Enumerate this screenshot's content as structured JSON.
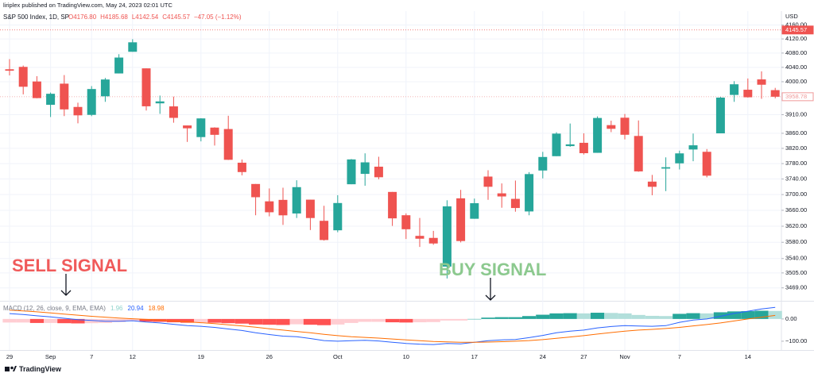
{
  "header": {
    "publisher": "liriplex published on TradingView.com, May 24, 2023 02:01 UTC",
    "currency": "USD",
    "footer": "TradingView"
  },
  "chart_data": [
    {
      "type": "candlestick",
      "legend": {
        "symbol": "S&P 500 Index, 1D, SP",
        "ohlc": [
          "O4176.80",
          "H4185.68",
          "L4142.54",
          "C4145.57",
          "−47.05 (−1.12%)"
        ]
      },
      "categories": [
        "29",
        null,
        null,
        "Sep",
        null,
        null,
        "7",
        null,
        null,
        "12",
        null,
        null,
        null,
        null,
        "19",
        null,
        null,
        null,
        null,
        "26",
        null,
        null,
        null,
        null,
        "Oct",
        null,
        null,
        null,
        null,
        "10",
        null,
        null,
        null,
        null,
        "17",
        null,
        null,
        null,
        null,
        "24",
        null,
        null,
        "27",
        null,
        null,
        "Nov",
        null,
        null,
        null,
        "7",
        null,
        null,
        null,
        null,
        "14",
        null,
        null
      ],
      "open": [
        4034.58,
        4041.25,
        4000.67,
        3936.73,
        3994.66,
        3930.89,
        3909.43,
        3959.94,
        4022.94,
        4083.67,
        4037.12,
        3940.73,
        3932.41,
        3880.95,
        3849.91,
        3875.23,
        3871.4,
        3782.36,
        3727.14,
        3682.72,
        3686.44,
        3651.94,
        3687.01,
        3633.48,
        3609.78,
        3726.46,
        3753.25,
        3771.97,
        3706.74,
        3647.51,
        3595.86,
        3590.83,
        3520.37,
        3690.41,
        3638.65,
        3746.26,
        3703.11,
        3689.05,
        3657.1,
        3762.01,
        3799.44,
        3825.97,
        3834.69,
        3808.26,
        3881.86,
        3901.79,
        3852.9,
        3733.25,
        3766.98,
        3780.71,
        3817.02,
        3810.94,
        3859.89,
        3963.72,
        3977.97,
        4006.41,
        3976.82
      ],
      "high": [
        4062.99,
        4044.98,
        4015.37,
        3970.23,
        4018.43,
        3942.55,
        3987.89,
        4010.5,
        4076.81,
        4119.28,
        4037.12,
        3961.94,
        3959.14,
        3880.95,
        3900.45,
        3876.01,
        3907.07,
        3790.68,
        3727.14,
        3715.67,
        3717.53,
        3736.74,
        3687.01,
        3671.44,
        3698.35,
        3791.92,
        3806.91,
        3797.93,
        3706.74,
        3652.17,
        3640.66,
        3608.34,
        3685.41,
        3712.0,
        3689.73,
        3762.79,
        3728.58,
        3736.0,
        3757.89,
        3810.74,
        3862.85,
        3886.15,
        3859.95,
        3905.42,
        3893.73,
        3911.79,
        3894.44,
        3750.59,
        3796.34,
        3813.95,
        3859.4,
        3818.2,
        3958.33,
        4001.48,
        4008.97,
        4028.84,
        3983.09
      ],
      "low": [
        4017.42,
        3965.21,
        3954.53,
        3903.65,
        3906.21,
        3886.75,
        3906.03,
        3944.81,
        4022.94,
        4083.67,
        3921.27,
        3912.17,
        3888.28,
        3837.08,
        3838.5,
        3827.54,
        3789.49,
        3749.45,
        3647.47,
        3644.76,
        3623.29,
        3640.61,
        3610.4,
        3584.13,
        3604.93,
        3726.46,
        3722.66,
        3739.22,
        3620.73,
        3588.1,
        3568.45,
        3573.86,
        3491.58,
        3579.68,
        3638.65,
        3686.53,
        3666.51,
        3656.44,
        3647.42,
        3741.65,
        3799.44,
        3824.07,
        3803.79,
        3808.26,
        3863.18,
        3843.8,
        3758.68,
        3698.15,
        3708.84,
        3764.7,
        3786.28,
        3744.22,
        3859.89,
        3944.82,
        3956.4,
        3953.17,
        3954.34
      ],
      "close": [
        4030.61,
        3986.16,
        3955.0,
        3966.85,
        3924.26,
        3908.19,
        3979.87,
        4006.18,
        4067.36,
        4110.41,
        3932.69,
        3946.01,
        3901.35,
        3873.33,
        3899.89,
        3855.93,
        3789.93,
        3757.99,
        3693.23,
        3655.04,
        3647.29,
        3719.04,
        3640.47,
        3585.62,
        3678.43,
        3790.93,
        3783.28,
        3744.52,
        3639.66,
        3612.39,
        3588.84,
        3577.03,
        3669.91,
        3583.07,
        3677.95,
        3719.98,
        3695.16,
        3665.78,
        3752.75,
        3797.34,
        3859.11,
        3830.6,
        3807.3,
        3901.06,
        3871.98,
        3856.1,
        3759.69,
        3719.89,
        3770.55,
        3806.8,
        3828.11,
        3748.57,
        3956.37,
        3992.93,
        3957.25,
        3991.73,
        3958.78
      ],
      "up_color": "#26a69a",
      "down_color": "#ef5350",
      "log_scale": true,
      "grid": true,
      "ylim": [
        3440,
        4200
      ],
      "yticks": [
        {
          "value": 3469,
          "label": "3469.00"
        },
        {
          "value": 3505,
          "label": "3505.00"
        },
        {
          "value": 3540,
          "label": "3540.00"
        },
        {
          "value": 3580,
          "label": "3580.00"
        },
        {
          "value": 3620,
          "label": "3620.00"
        },
        {
          "value": 3660,
          "label": "3660.00"
        },
        {
          "value": 3700,
          "label": "3700.00"
        },
        {
          "value": 3740,
          "label": "3740.00"
        },
        {
          "value": 3780,
          "label": "3780.00"
        },
        {
          "value": 3820,
          "label": "3820.00"
        },
        {
          "value": 3860,
          "label": "3860.00"
        },
        {
          "value": 3910,
          "label": "3910.00"
        },
        {
          "value": 4000,
          "label": "4000.00"
        },
        {
          "value": 4040,
          "label": "4040.00"
        },
        {
          "value": 4080,
          "label": "4080.00"
        },
        {
          "value": 4120,
          "label": "4120.00"
        },
        {
          "value": 4160,
          "label": "4160.00"
        }
      ],
      "price_lines": [
        {
          "value": 4145.57,
          "label": "4145.57",
          "color": "#ef5350"
        },
        {
          "value": 3958.78,
          "label": "3958.78",
          "color": "#ef9a9a"
        }
      ],
      "annotations": [
        {
          "text": "SELL SIGNAL",
          "color": "#f05a5a"
        },
        {
          "text": "BUY SIGNAL",
          "color": "#8cc98e"
        }
      ]
    },
    {
      "type": "macd",
      "legend": {
        "title": "MACD (12, 26, close, 9, EMA, EMA)",
        "values": [
          {
            "text": "1.96",
            "color": "#8fd3cc"
          },
          {
            "text": "20.94",
            "color": "#2962ff"
          },
          {
            "text": "18.98",
            "color": "#ff6d00"
          }
        ]
      },
      "histogram": [
        -16,
        -16,
        -18,
        -18,
        -19,
        -20,
        -19,
        -18,
        -14,
        -9,
        -12,
        -13,
        -15,
        -17,
        -16,
        -17,
        -19,
        -21,
        -25,
        -26,
        -27,
        -24,
        -26,
        -28,
        -25,
        -18,
        -13,
        -13,
        -15,
        -16,
        -15,
        -14,
        -7,
        -7,
        0,
        6,
        8,
        8,
        13,
        19,
        25,
        26,
        25,
        28,
        27,
        25,
        18,
        14,
        13,
        23,
        26,
        25,
        30,
        34,
        35,
        37,
        36
      ],
      "histogram_colors": [
        "#26a69a",
        "#b2dfdb",
        "#ffcdd2",
        "#ff5252"
      ],
      "series": [
        {
          "color": "#2962ff",
          "values": [
            24,
            20,
            14,
            9,
            3,
            -3,
            -7,
            -10,
            -10,
            -8,
            -14,
            -18,
            -24,
            -30,
            -33,
            -38,
            -45,
            -52,
            -62,
            -70,
            -77,
            -80,
            -88,
            -97,
            -100,
            -98,
            -96,
            -99,
            -105,
            -110,
            -113,
            -115,
            -110,
            -112,
            -105,
            -98,
            -94,
            -92,
            -84,
            -74,
            -62,
            -55,
            -50,
            -40,
            -34,
            -30,
            -32,
            -33,
            -30,
            -15,
            -5,
            0,
            12,
            25,
            35,
            45,
            52
          ]
        },
        {
          "color": "#ff6d00",
          "values": [
            40,
            36,
            32,
            27,
            22,
            17,
            12,
            8,
            4,
            1,
            -2,
            -5,
            -9,
            -13,
            -17,
            -21,
            -26,
            -31,
            -37,
            -44,
            -50,
            -56,
            -62,
            -69,
            -75,
            -80,
            -83,
            -86,
            -90,
            -94,
            -98,
            -101,
            -103,
            -105,
            -105,
            -104,
            -102,
            -100,
            -97,
            -93,
            -87,
            -81,
            -75,
            -68,
            -61,
            -55,
            -50,
            -47,
            -43,
            -38,
            -31,
            -25,
            -18,
            -9,
            0,
            8,
            16
          ]
        }
      ],
      "ylim": [
        -136,
        78
      ],
      "yticks": [
        {
          "value": 0,
          "label": "0.00"
        },
        {
          "value": -100,
          "label": "−100.00"
        }
      ]
    }
  ]
}
